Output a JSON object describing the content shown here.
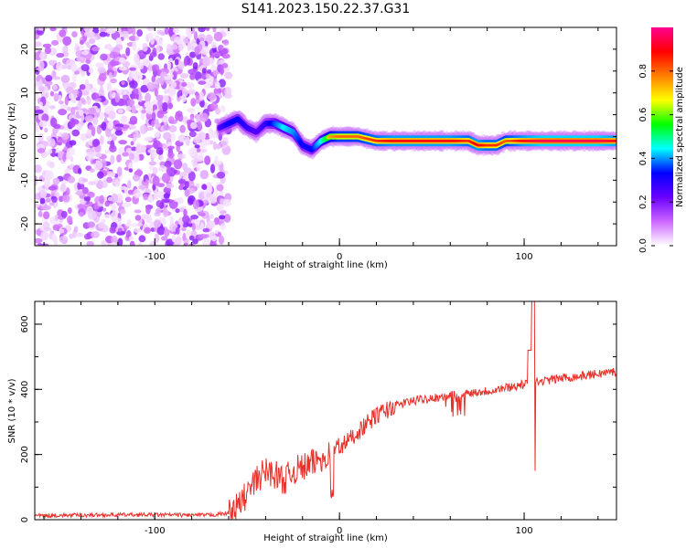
{
  "title": "S141.2023.150.22.37.G31",
  "chart_data": [
    {
      "type": "heatmap",
      "xlabel": "Height of straight line (km)",
      "ylabel": "Frequency (Hz)",
      "xlim": [
        -165,
        150
      ],
      "ylim": [
        -25,
        25
      ],
      "xticks": [
        -100,
        0,
        100
      ],
      "yticks": [
        -20,
        -10,
        0,
        10,
        20
      ],
      "colorbar": {
        "label": "Normalized spectral amplitude",
        "range": [
          0,
          1
        ],
        "ticks": [
          "0.0",
          "0.2",
          "0.4",
          "0.6",
          "0.8"
        ],
        "colors": [
          "#ffffff",
          "#cc66ff",
          "#6a00ff",
          "#0000ff",
          "#00ffff",
          "#00ff00",
          "#ffff00",
          "#ff7f00",
          "#ff0000",
          "#ff0090"
        ]
      },
      "ridge": {
        "x": [
          -65,
          -60,
          -55,
          -50,
          -45,
          -40,
          -35,
          -30,
          -25,
          -20,
          -15,
          -10,
          -5,
          0,
          10,
          20,
          30,
          40,
          50,
          60,
          70,
          75,
          80,
          85,
          90,
          95,
          100,
          110,
          120,
          130,
          140,
          150
        ],
        "y": [
          2,
          3,
          4,
          2,
          1,
          3,
          3,
          2,
          1,
          -2,
          -3,
          -1,
          0,
          0,
          0,
          -1,
          -1,
          -1,
          -1,
          -1,
          -1,
          -2,
          -2,
          -2,
          -1,
          -1,
          -1,
          -1,
          -1,
          -1,
          -1,
          -1
        ],
        "amplitude": [
          0.3,
          0.4,
          0.4,
          0.35,
          0.3,
          0.35,
          0.45,
          0.55,
          0.5,
          0.4,
          0.4,
          0.55,
          0.75,
          0.8,
          0.8,
          0.85,
          0.9,
          0.9,
          0.9,
          0.9,
          0.85,
          0.9,
          0.85,
          0.85,
          0.8,
          0.85,
          0.9,
          0.95,
          0.95,
          0.95,
          0.95,
          0.9
        ]
      }
    },
    {
      "type": "line",
      "xlabel": "Height of straight line (km)",
      "ylabel": "SNR (10 * v/v)",
      "xlim": [
        -165,
        150
      ],
      "ylim": [
        0,
        670
      ],
      "xticks": [
        -100,
        0,
        100
      ],
      "yticks": [
        0,
        200,
        400,
        600
      ],
      "color": "#e8302a",
      "series": [
        {
          "x": [
            -165,
            -140,
            -120,
            -100,
            -80,
            -70,
            -60,
            -55,
            -50,
            -45,
            -40,
            -35,
            -30,
            -25,
            -20,
            -15,
            -10,
            -5,
            0,
            10,
            20,
            30,
            40,
            50,
            60,
            70,
            80,
            90,
            100,
            105,
            110,
            120,
            130,
            140,
            150
          ],
          "values": [
            12,
            14,
            15,
            15,
            14,
            14,
            20,
            40,
            80,
            120,
            150,
            140,
            120,
            150,
            160,
            170,
            190,
            200,
            220,
            270,
            320,
            350,
            365,
            375,
            380,
            390,
            395,
            405,
            415,
            420,
            425,
            435,
            440,
            448,
            455
          ]
        }
      ]
    }
  ]
}
